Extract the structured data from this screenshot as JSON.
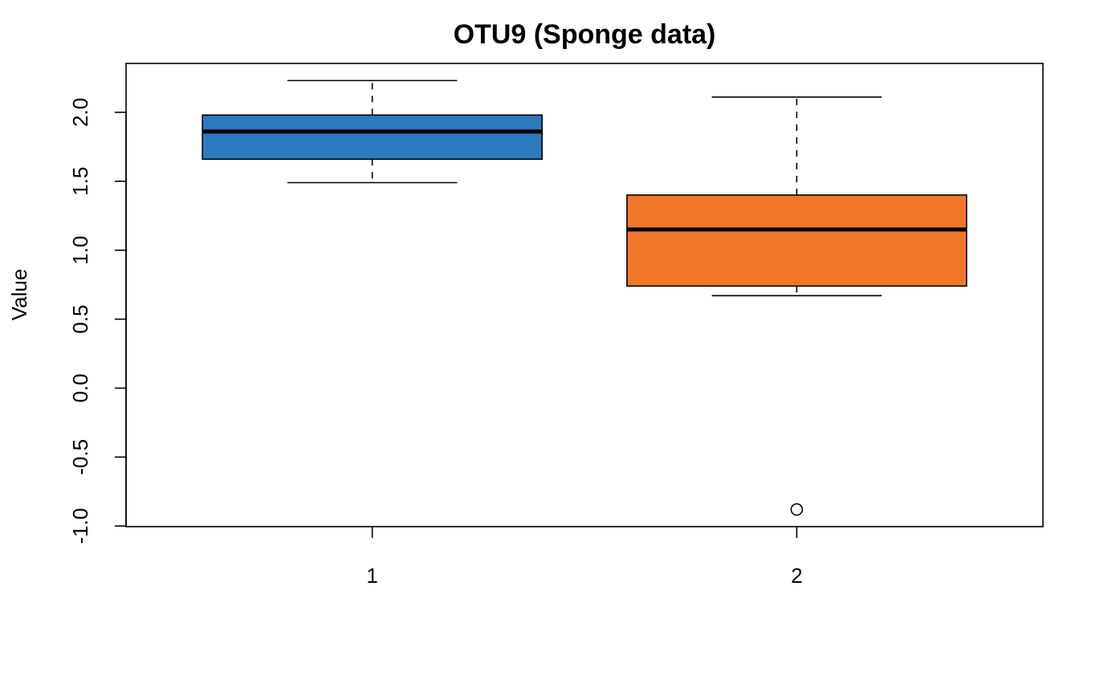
{
  "chart_data": {
    "type": "boxplot",
    "title": "OTU9 (Sponge data)",
    "xlabel": "",
    "ylabel": "Value",
    "ylim": [
      -1.0,
      2.35
    ],
    "xlim": [
      0.42,
      2.58
    ],
    "yticks": [
      -1.0,
      -0.5,
      0.0,
      0.5,
      1.0,
      1.5,
      2.0
    ],
    "ytick_labels": [
      "-1.0",
      "-0.5",
      "0.0",
      "0.5",
      "1.0",
      "1.5",
      "2.0"
    ],
    "categories": [
      "1",
      "2"
    ],
    "boxes": [
      {
        "category": "1",
        "color": "#2b7bc1",
        "whisker_low": 1.49,
        "q1": 1.66,
        "median": 1.86,
        "q3": 1.98,
        "whisker_high": 2.23,
        "outliers": []
      },
      {
        "category": "2",
        "color": "#f0772a",
        "whisker_low": 0.67,
        "q1": 0.74,
        "median": 1.15,
        "q3": 1.4,
        "whisker_high": 2.11,
        "outliers": [
          -0.88
        ]
      }
    ],
    "grid": false,
    "legend": "none"
  }
}
